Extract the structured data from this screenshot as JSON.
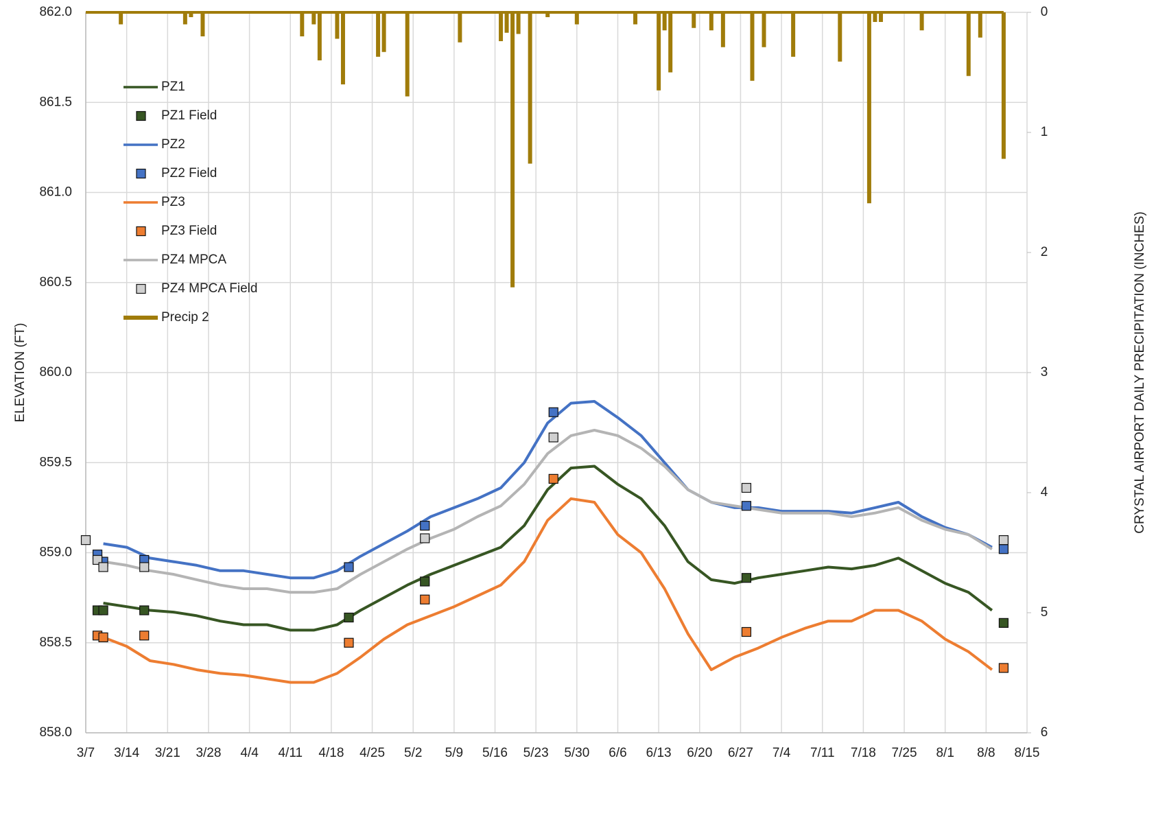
{
  "chart_data": {
    "type": "line",
    "y_label": "ELEVATION (FT)",
    "y2_label": "CRYSTAL AIRPORT DAILY PRECIPITATION (INCHES)",
    "xlim": [
      "3/7",
      "8/15"
    ],
    "xticks": [
      "3/7",
      "3/14",
      "3/21",
      "3/28",
      "4/4",
      "4/11",
      "4/18",
      "4/25",
      "5/2",
      "5/9",
      "5/16",
      "5/23",
      "5/30",
      "6/6",
      "6/13",
      "6/20",
      "6/27",
      "7/4",
      "7/11",
      "7/18",
      "7/25",
      "8/1",
      "8/8",
      "8/15"
    ],
    "ylim": [
      858,
      862
    ],
    "yticks": [
      {
        "value": 858,
        "label": "858.0"
      },
      858.5,
      {
        "value": 859,
        "label": "859.0"
      },
      859.5,
      {
        "value": 860,
        "label": "860.0"
      },
      860.5,
      {
        "value": 861,
        "label": "861.0"
      },
      861.5,
      {
        "value": 862,
        "label": "862.0"
      }
    ],
    "y2lim": [
      6,
      0
    ],
    "y2ticks": [
      0,
      1,
      2,
      3,
      4,
      5,
      6
    ],
    "grid": true,
    "legend": "upper left",
    "series": [
      {
        "name": "PZ1",
        "type": "line",
        "color": "#375623",
        "x": [
          "3/10",
          "3/14",
          "3/18",
          "3/22",
          "3/26",
          "3/30",
          "4/3",
          "4/7",
          "4/11",
          "4/15",
          "4/19",
          "4/23",
          "4/27",
          "5/1",
          "5/5",
          "5/9",
          "5/13",
          "5/17",
          "5/21",
          "5/25",
          "5/29",
          "6/2",
          "6/6",
          "6/10",
          "6/14",
          "6/18",
          "6/22",
          "6/26",
          "6/30",
          "7/4",
          "7/8",
          "7/12",
          "7/16",
          "7/20",
          "7/24",
          "7/28",
          "8/1",
          "8/5",
          "8/9"
        ],
        "values": [
          858.72,
          858.7,
          858.68,
          858.67,
          858.65,
          858.62,
          858.6,
          858.6,
          858.57,
          858.57,
          858.6,
          858.68,
          858.75,
          858.82,
          858.88,
          858.93,
          858.98,
          859.03,
          859.15,
          859.35,
          859.47,
          859.48,
          859.38,
          859.3,
          859.15,
          858.95,
          858.85,
          858.83,
          858.86,
          858.88,
          858.9,
          858.92,
          858.91,
          858.93,
          858.97,
          858.9,
          858.83,
          858.78,
          858.68
        ]
      },
      {
        "name": "PZ1 Field",
        "type": "marker",
        "color": "#375623",
        "x": [
          "3/9",
          "3/10",
          "3/17",
          "4/21",
          "5/4",
          "6/28",
          "8/11"
        ],
        "values": [
          858.68,
          858.68,
          858.68,
          858.64,
          858.84,
          858.86,
          858.61
        ]
      },
      {
        "name": "PZ2",
        "type": "line",
        "color": "#4472c4",
        "x": [
          "3/10",
          "3/14",
          "3/18",
          "3/22",
          "3/26",
          "3/30",
          "4/3",
          "4/7",
          "4/11",
          "4/15",
          "4/19",
          "4/23",
          "4/27",
          "5/1",
          "5/5",
          "5/9",
          "5/13",
          "5/17",
          "5/21",
          "5/25",
          "5/29",
          "6/2",
          "6/6",
          "6/10",
          "6/14",
          "6/18",
          "6/22",
          "6/26",
          "6/30",
          "7/4",
          "7/8",
          "7/12",
          "7/16",
          "7/20",
          "7/24",
          "7/28",
          "8/1",
          "8/5",
          "8/9"
        ],
        "values": [
          859.05,
          859.03,
          858.97,
          858.95,
          858.93,
          858.9,
          858.9,
          858.88,
          858.86,
          858.86,
          858.9,
          858.98,
          859.05,
          859.12,
          859.2,
          859.25,
          859.3,
          859.36,
          859.5,
          859.72,
          859.83,
          859.84,
          859.75,
          859.65,
          859.5,
          859.35,
          859.28,
          859.25,
          859.25,
          859.23,
          859.23,
          859.23,
          859.22,
          859.25,
          859.28,
          859.2,
          859.14,
          859.1,
          859.03
        ]
      },
      {
        "name": "PZ2 Field",
        "type": "marker",
        "color": "#4472c4",
        "x": [
          "3/9",
          "3/10",
          "3/17",
          "4/21",
          "5/4",
          "5/26",
          "6/28",
          "8/11"
        ],
        "values": [
          858.99,
          858.95,
          858.96,
          858.92,
          859.15,
          859.78,
          859.26,
          859.02
        ]
      },
      {
        "name": "PZ3",
        "type": "line",
        "color": "#ed7d31",
        "x": [
          "3/10",
          "3/14",
          "3/18",
          "3/22",
          "3/26",
          "3/30",
          "4/3",
          "4/7",
          "4/11",
          "4/15",
          "4/19",
          "4/23",
          "4/27",
          "5/1",
          "5/5",
          "5/9",
          "5/13",
          "5/17",
          "5/21",
          "5/25",
          "5/29",
          "6/2",
          "6/6",
          "6/10",
          "6/14",
          "6/18",
          "6/22",
          "6/26",
          "6/30",
          "7/4",
          "7/8",
          "7/12",
          "7/16",
          "7/20",
          "7/24",
          "7/28",
          "8/1",
          "8/5",
          "8/9"
        ],
        "values": [
          858.53,
          858.48,
          858.4,
          858.38,
          858.35,
          858.33,
          858.32,
          858.3,
          858.28,
          858.28,
          858.33,
          858.42,
          858.52,
          858.6,
          858.65,
          858.7,
          858.76,
          858.82,
          858.95,
          859.18,
          859.3,
          859.28,
          859.1,
          859.0,
          858.8,
          858.55,
          858.35,
          858.42,
          858.47,
          858.53,
          858.58,
          858.62,
          858.62,
          858.68,
          858.68,
          858.62,
          858.52,
          858.45,
          858.35
        ]
      },
      {
        "name": "PZ3 Field",
        "type": "marker",
        "color": "#ed7d31",
        "x": [
          "3/9",
          "3/10",
          "3/17",
          "4/21",
          "5/4",
          "5/26",
          "6/28",
          "8/11"
        ],
        "values": [
          858.54,
          858.53,
          858.54,
          858.5,
          858.74,
          859.41,
          858.56,
          858.36
        ]
      },
      {
        "name": "PZ4 MPCA",
        "type": "line",
        "color": "#b4b4b4",
        "x": [
          "3/10",
          "3/14",
          "3/18",
          "3/22",
          "3/26",
          "3/30",
          "4/3",
          "4/7",
          "4/11",
          "4/15",
          "4/19",
          "4/23",
          "4/27",
          "5/1",
          "5/5",
          "5/9",
          "5/13",
          "5/17",
          "5/21",
          "5/25",
          "5/29",
          "6/2",
          "6/6",
          "6/10",
          "6/14",
          "6/18",
          "6/22",
          "6/26",
          "6/30",
          "7/4",
          "7/8",
          "7/12",
          "7/16",
          "7/20",
          "7/24",
          "7/28",
          "8/1",
          "8/5",
          "8/9"
        ],
        "values": [
          858.95,
          858.93,
          858.9,
          858.88,
          858.85,
          858.82,
          858.8,
          858.8,
          858.78,
          858.78,
          858.8,
          858.88,
          858.95,
          859.02,
          859.08,
          859.13,
          859.2,
          859.26,
          859.38,
          859.55,
          859.65,
          859.68,
          859.65,
          859.58,
          859.48,
          859.35,
          859.28,
          859.26,
          859.24,
          859.22,
          859.22,
          859.22,
          859.2,
          859.22,
          859.25,
          859.18,
          859.13,
          859.1,
          859.02
        ]
      },
      {
        "name": "PZ4 MPCA Field",
        "type": "marker",
        "color": "#d0d0d0",
        "x": [
          "3/7",
          "3/9",
          "3/10",
          "3/17",
          "5/4",
          "5/26",
          "6/28",
          "8/11"
        ],
        "values": [
          859.07,
          858.96,
          858.92,
          858.92,
          859.08,
          859.64,
          859.36,
          859.07
        ]
      },
      {
        "name": "Precip 2",
        "type": "bar",
        "axis": "y2",
        "color": "#a07c0a",
        "x": [
          "3/13",
          "3/24",
          "3/25",
          "3/27",
          "4/13",
          "4/15",
          "4/16",
          "4/19",
          "4/20",
          "4/26",
          "4/27",
          "5/1",
          "5/10",
          "5/17",
          "5/18",
          "5/19",
          "5/20",
          "5/22",
          "5/25",
          "5/30",
          "6/9",
          "6/13",
          "6/14",
          "6/15",
          "6/19",
          "6/22",
          "6/24",
          "6/29",
          "7/1",
          "7/6",
          "7/14",
          "7/19",
          "7/20",
          "7/21",
          "7/28",
          "8/5",
          "8/7",
          "8/11"
        ],
        "values": [
          0.1,
          0.1,
          0.04,
          0.2,
          0.2,
          0.1,
          0.4,
          0.22,
          0.6,
          0.37,
          0.33,
          0.7,
          0.25,
          0.24,
          0.17,
          2.29,
          0.18,
          1.26,
          0.04,
          0.1,
          0.1,
          0.65,
          0.15,
          0.5,
          0.13,
          0.15,
          0.29,
          0.57,
          0.29,
          0.37,
          0.41,
          1.59,
          0.08,
          0.08,
          0.15,
          0.53,
          0.21,
          1.22
        ]
      }
    ]
  }
}
